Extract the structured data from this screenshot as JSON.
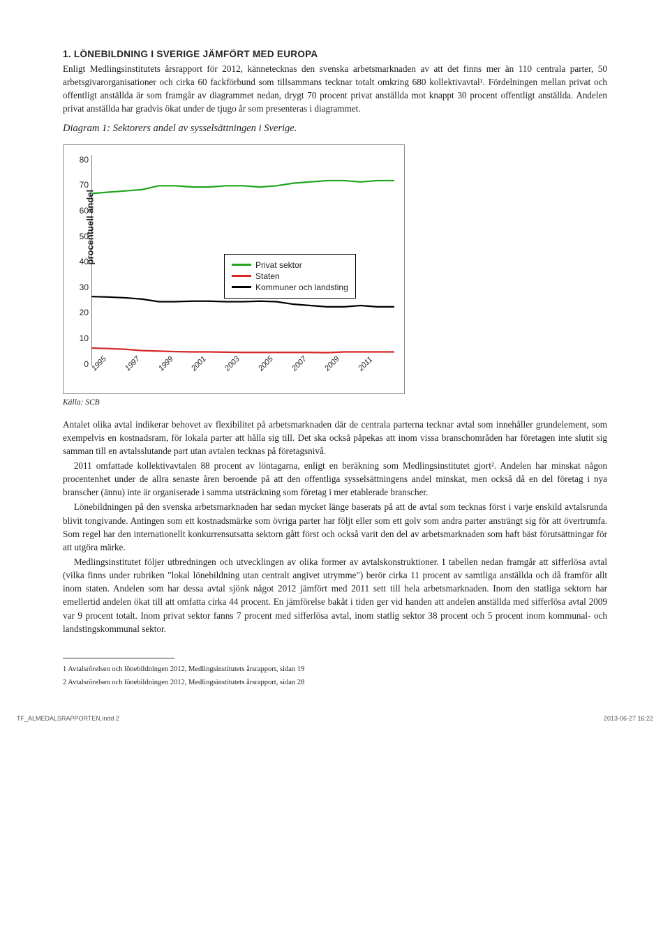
{
  "heading": "1. LÖNEBILDNING I SVERIGE JÄMFÖRT MED EUROPA",
  "para1": "Enligt Medlingsinstitutets årsrapport för 2012, kännetecknas den svenska arbetsmarknaden av att det finns mer än 110 centrala parter, 50 arbetsgivarorganisationer och cirka 60 fackförbund som tillsammans tecknar totalt omkring 680 kollektivavtal¹. Fördelningen mellan privat och offentligt anställda är som framgår av diagrammet nedan, drygt 70 procent privat anställda mot knappt 30 procent offentligt anställda. Andelen privat anställda har gradvis ökat under de tjugo år som presenteras i diagrammet.",
  "diagram_title": "Diagram 1: Sektorers andel av sysselsättningen i Sverige.",
  "chart": {
    "type": "line",
    "y_axis_label": "procentuell andel",
    "y_ticks": [
      0,
      10,
      20,
      30,
      40,
      50,
      60,
      70,
      80
    ],
    "ylim": [
      0,
      82
    ],
    "x_labels": [
      "1995",
      "1997",
      "1999",
      "2001",
      "2003",
      "2005",
      "2007",
      "2009",
      "2011"
    ],
    "series": [
      {
        "name": "Privat sektor",
        "color": "#1fa61f",
        "width": 2.2,
        "values": [
          67,
          67.5,
          68,
          68.5,
          70,
          70,
          69.5,
          69.5,
          70,
          70,
          69.5,
          70,
          71,
          71.5,
          72,
          72,
          71.5,
          72,
          72
        ]
      },
      {
        "name": "Staten",
        "color": "#d62728",
        "width": 2.2,
        "values": [
          7,
          6.8,
          6.5,
          6,
          5.8,
          5.6,
          5.5,
          5.5,
          5.4,
          5.3,
          5.3,
          5.3,
          5.3,
          5.3,
          5.2,
          5.5,
          5.5,
          5.5,
          5.5
        ]
      },
      {
        "name": "Kommuner och landsting",
        "color": "#000000",
        "width": 2.2,
        "values": [
          27,
          26.8,
          26.5,
          26,
          25,
          25,
          25.2,
          25.2,
          25,
          25,
          25.2,
          25,
          24,
          23.5,
          23,
          23,
          23.5,
          23,
          23
        ]
      }
    ],
    "background_color": "#ffffff",
    "border_color": "#888888",
    "axis_color": "#000000",
    "tick_font_size": 12,
    "label_font_size": 13
  },
  "source": "Källa: SCB",
  "para2": "Antalet olika avtal indikerar behovet av flexibilitet på arbetsmarknaden där de centrala parterna tecknar avtal som innehåller grundelement, som exempelvis en kostnadsram, för lokala parter att hålla sig till. Det ska också påpekas att inom vissa branschområden har företagen inte slutit sig samman till en avtalsslutande part utan avtalen tecknas på företagsnivå.",
  "para3": "2011 omfattade kollektivavtalen 88 procent av löntagarna, enligt en beräkning som Medlingsinstitutet gjort². Andelen har minskat någon procentenhet under de allra senaste åren beroende på att den offentliga sysselsättningens andel minskat, men också då en del företag i nya branscher (ännu) inte är organiserade i samma utsträckning som företag i mer etablerade branscher.",
  "para4": "Lönebildningen på den svenska arbetsmarknaden har sedan mycket länge baserats på att de avtal som tecknas först i varje enskild avtalsrunda blivit tongivande. Antingen som ett kostnadsmärke som övriga parter har följt eller som ett golv som andra parter ansträngt sig för att övertrumfa. Som regel har den internationellt konkurrensutsatta sektorn gått först och också varit den del av arbetsmarknaden som haft bäst förutsättningar för att utgöra märke.",
  "para5": "Medlingsinstitutet följer utbredningen och utvecklingen av olika former av avtalskonstruktioner. I tabellen nedan framgår att sifferlösa avtal (vilka finns under rubriken \"lokal lönebildning utan centralt angivet utrymme\") berör cirka 11 procent av samtliga anställda och då framför allt inom staten. Andelen som har dessa avtal sjönk något 2012 jämfört med 2011 sett till hela arbetsmarknaden. Inom den statliga sektorn har emellertid andelen ökat till att omfatta cirka 44 procent. En jämförelse bakåt i tiden ger vid handen att andelen anställda med sifferlösa avtal 2009 var 9 procent totalt. Inom privat sektor fanns 7 procent med sifferlösa avtal, inom statlig sektor 38 procent och 5 procent inom kommunal- och landstingskommunal sektor.",
  "footnotes": [
    "1   Avtalsrörelsen och lönebildningen 2012, Medlingsinstitutets årsrapport, sidan 19",
    "2   Avtalsrörelsen och lönebildningen 2012, Medlingsinstitutets årsrapport, sidan 28"
  ],
  "footer_left": "TF_ALMEDALSRAPPORTEN.indd   2",
  "footer_right": "2013-06-27   16:22"
}
